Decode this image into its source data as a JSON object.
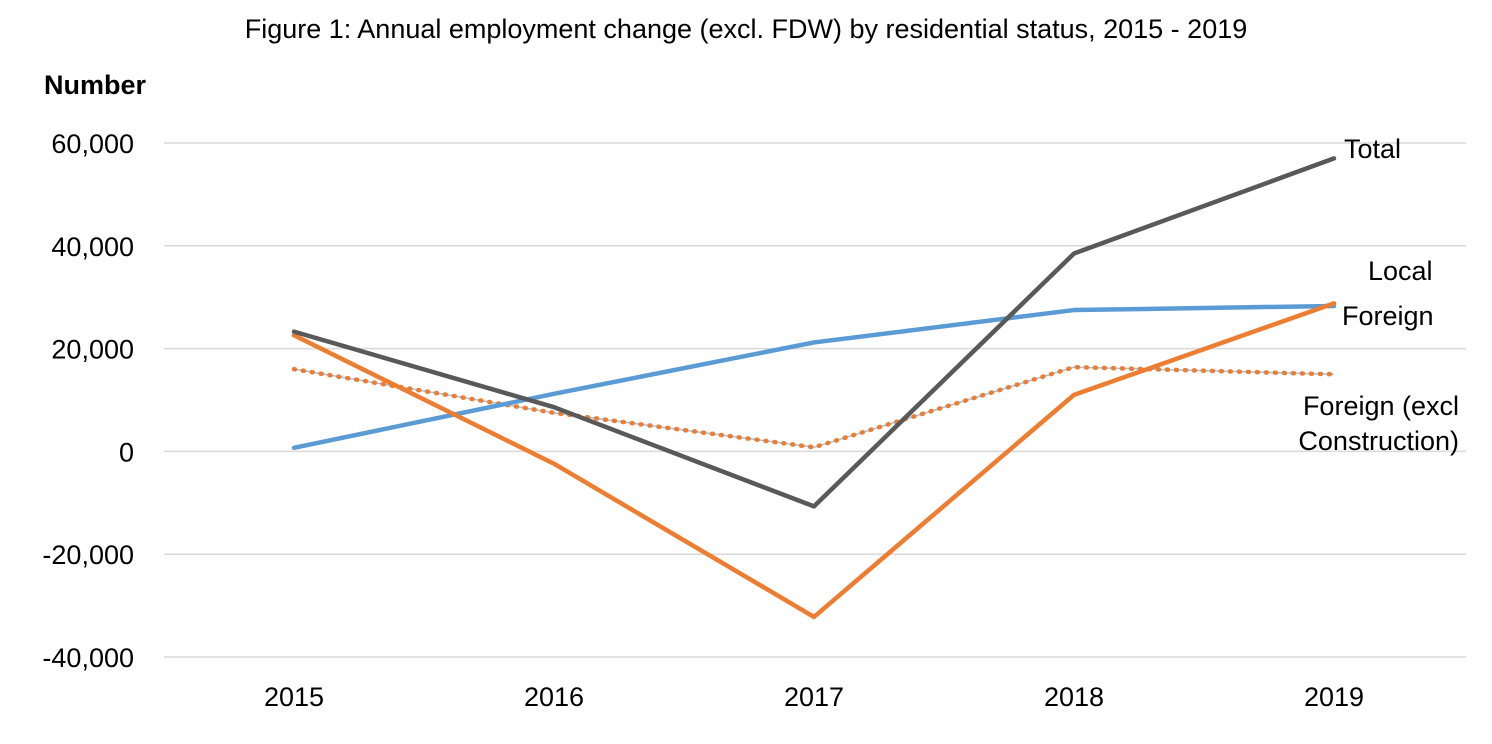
{
  "chart_data": {
    "type": "line",
    "title": "Figure 1: Annual employment change (excl. FDW) by residential status, 2015 - 2019",
    "ylabel": "Number",
    "xlabel": "",
    "categories": [
      "2015",
      "2016",
      "2017",
      "2018",
      "2019"
    ],
    "y_ticks": [
      60000,
      40000,
      20000,
      0,
      -20000,
      -40000
    ],
    "y_tick_labels": [
      "60,000",
      "40,000",
      "20,000",
      "0",
      "-20,000",
      "-40,000"
    ],
    "ylim": [
      -40000,
      60000
    ],
    "grid": true,
    "legend": "none (series labels at right end of lines)",
    "series": [
      {
        "name": "Total",
        "values": [
          23300,
          8600,
          -10700,
          38500,
          57000
        ],
        "color": "#595959",
        "style": "solid"
      },
      {
        "name": "Local",
        "values": [
          700,
          11200,
          21200,
          27500,
          28300
        ],
        "color": "#5b9bd5",
        "style": "solid"
      },
      {
        "name": "Foreign",
        "values": [
          22600,
          -2400,
          -32200,
          11000,
          28800
        ],
        "color": "#ed7d31",
        "style": "solid"
      },
      {
        "name": "Foreign (excl Construction)",
        "label_lines": [
          "Foreign (excl",
          "Construction)"
        ],
        "values": [
          16000,
          7500,
          800,
          16400,
          15000
        ],
        "color": "#ed7d31",
        "style": "dotted"
      }
    ]
  }
}
